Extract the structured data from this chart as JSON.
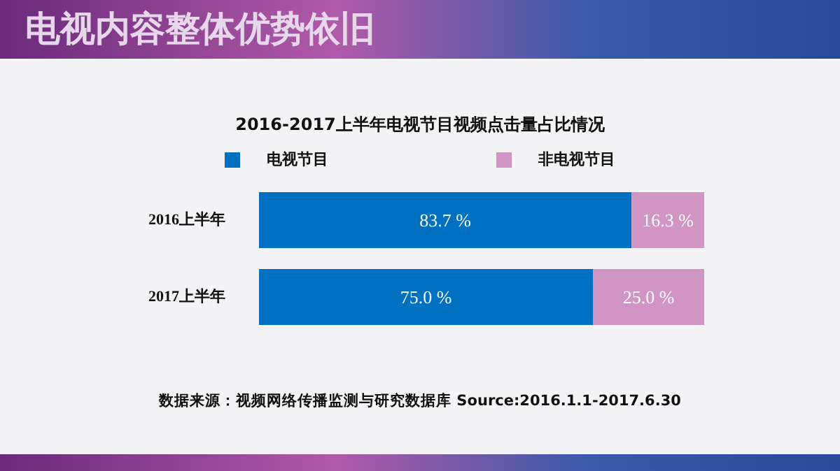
{
  "chart_data": {
    "type": "bar",
    "orientation": "horizontal",
    "stacked": true,
    "title": "电视内容整体优势依旧",
    "subtitle": "2016-2017上半年电视节目视频点击量占比情况",
    "categories": [
      "2016上半年",
      "2017上半年"
    ],
    "series": [
      {
        "name": "电视节目",
        "color": "#0070c0",
        "values": [
          83.7,
          75.0
        ],
        "value_labels": [
          "83.7 %",
          "75.0 %"
        ]
      },
      {
        "name": "非电视节目",
        "color": "#d095c5",
        "values": [
          16.3,
          25.0
        ],
        "value_labels": [
          "16.3 %",
          "25.0 %"
        ]
      }
    ],
    "xlim": [
      0,
      100
    ],
    "legend": "top",
    "annotations": [
      "数据来源：视频网络传播监测与研究数据库 Source:2016.1.1-2017.6.30"
    ]
  }
}
